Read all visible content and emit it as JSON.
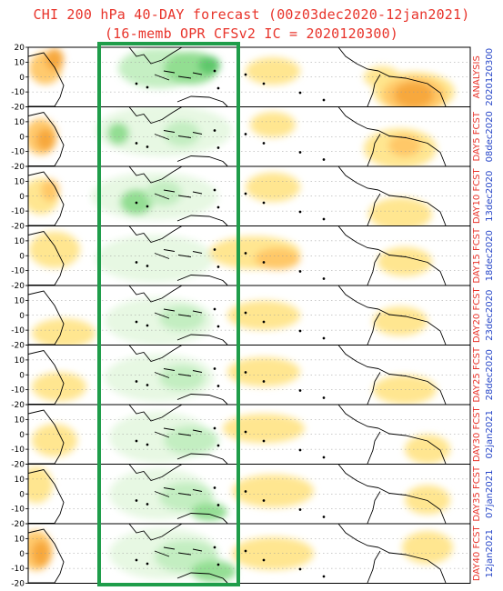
{
  "title_line1": "CHI 200 hPa 40-DAY forecast (00z03dec2020-12jan2021)",
  "title_line2": "(16-memb OPR CFSv2 IC = 2020120300)",
  "latitude_ticks": [
    "20",
    "10",
    "0",
    "-10",
    "-20"
  ],
  "colors": {
    "title": "#e8332a",
    "label_red": "#e8332a",
    "label_blue": "#2646c8",
    "box": "#1f9d4a",
    "positive": [
      "#fff6b8",
      "#ffe58a",
      "#ffc766",
      "#f7a73a"
    ],
    "negative": [
      "#e6f8e2",
      "#c2eec0",
      "#8fdd8f",
      "#5cc76a"
    ]
  },
  "panels": [
    {
      "label": "ANALYSIS",
      "date": "2020120300"
    },
    {
      "label": "DAY5 FCST",
      "date": "08dec2020"
    },
    {
      "label": "DAY10 FCST",
      "date": "13dec2020"
    },
    {
      "label": "DAY15 FCST",
      "date": "18dec2020"
    },
    {
      "label": "DAY20 FCST",
      "date": "23dec2020"
    },
    {
      "label": "DAY25 FCST",
      "date": "28dec2020"
    },
    {
      "label": "DAY30 FCST",
      "date": "02jan2021"
    },
    {
      "label": "DAY35 FCST",
      "date": "07jan2021"
    },
    {
      "label": "DAY40 FCST",
      "date": "12jan2021"
    }
  ]
}
